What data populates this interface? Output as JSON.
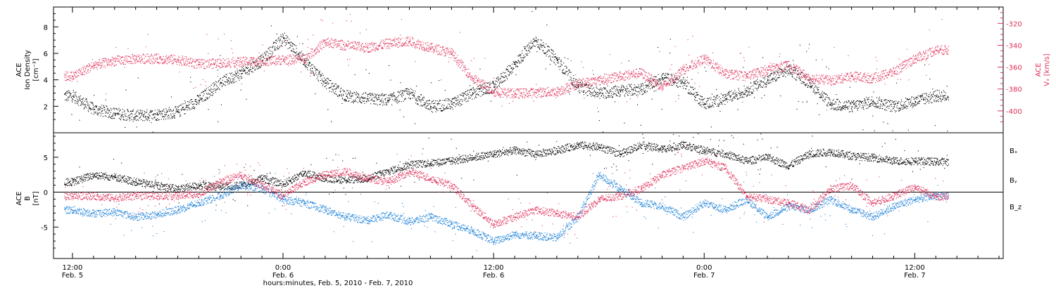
{
  "chart_data": [
    {
      "type": "scatter",
      "panel": "top",
      "title": "",
      "ylabel": [
        "ACE",
        "Ion Density",
        "[cm⁻³]"
      ],
      "y2label": [
        "ACE",
        "Vₓ [km/s]"
      ],
      "ylim": [
        0,
        9.5
      ],
      "y2lim": [
        -420,
        -305
      ],
      "yticks": [
        "2",
        "4",
        "6",
        "8"
      ],
      "y2ticks": [
        "-320",
        "-340",
        "-360",
        "-380",
        "-400"
      ],
      "xlim_hours": [
        -0.9,
        44.2
      ],
      "series": [
        {
          "color": "#000000",
          "axis": "left",
          "x_hours": [
            0,
            1,
            2,
            3,
            4,
            5,
            6,
            7,
            8,
            9,
            10,
            11,
            12,
            13,
            14,
            15,
            16,
            17,
            18,
            19,
            20,
            21,
            22,
            23,
            24,
            25,
            26,
            27,
            28,
            29,
            30,
            31,
            32,
            33,
            34,
            35,
            36,
            37,
            38,
            39,
            40,
            41
          ],
          "values": [
            2.8,
            1.8,
            1.5,
            1.3,
            1.4,
            1.6,
            2.5,
            3.8,
            4.5,
            5.5,
            7.2,
            5.5,
            3.8,
            2.8,
            2.6,
            2.5,
            3.0,
            2.0,
            2.2,
            3.0,
            3.5,
            5.2,
            7.0,
            5.5,
            3.5,
            3.0,
            3.2,
            3.3,
            4.2,
            3.8,
            2.2,
            2.6,
            3.2,
            4.0,
            4.8,
            3.8,
            2.2,
            2.0,
            2.4,
            2.0,
            2.4,
            2.8
          ]
        },
        {
          "color": "#e0305a",
          "axis": "right",
          "x_hours": [
            0,
            1,
            2,
            3,
            4,
            5,
            6,
            7,
            8,
            9,
            10,
            11,
            12,
            13,
            14,
            15,
            16,
            17,
            18,
            19,
            20,
            21,
            22,
            23,
            24,
            25,
            26,
            27,
            28,
            29,
            30,
            31,
            32,
            33,
            34,
            35,
            36,
            37,
            38,
            39,
            40,
            41
          ],
          "values": [
            -368,
            -358,
            -354,
            -352,
            -352,
            -353,
            -357,
            -356,
            -355,
            -354,
            -353,
            -352,
            -337,
            -340,
            -342,
            -338,
            -336,
            -342,
            -347,
            -370,
            -382,
            -384,
            -383,
            -382,
            -375,
            -372,
            -368,
            -365,
            -378,
            -362,
            -352,
            -366,
            -368,
            -362,
            -358,
            -370,
            -372,
            -368,
            -370,
            -364,
            -352,
            -344
          ]
        }
      ]
    },
    {
      "type": "scatter",
      "panel": "bottom",
      "title": "",
      "ylabel": [
        "ACE",
        "B",
        "[nT]"
      ],
      "ylim": [
        -9.5,
        8.5
      ],
      "yticks": [
        "-5",
        "0",
        "5"
      ],
      "xlabel": "hours:minutes, Feb.  5, 2010 - Feb.  7, 2010",
      "xticks": [
        {
          "hours": 0,
          "time": "12:00",
          "date": "Feb. 5"
        },
        {
          "hours": 10,
          "time": "0:00",
          "date": "Feb. 6"
        },
        {
          "hours": 20,
          "time": "12:00",
          "date": "Feb. 6"
        },
        {
          "hours": 30,
          "time": "0:00",
          "date": "Feb. 7"
        },
        {
          "hours": 40,
          "time": "12:00",
          "date": "Feb. 7"
        }
      ],
      "legend": [
        {
          "label": "Bₓ",
          "color": "#000000"
        },
        {
          "label": "Bᵧ",
          "color": "#1a7fd6"
        },
        {
          "label": "B_z",
          "color": "#e0305a"
        }
      ],
      "series": [
        {
          "label": "Bₓ",
          "color": "#000000",
          "x_hours": [
            0,
            1,
            2,
            3,
            4,
            5,
            6,
            7,
            8,
            9,
            10,
            11,
            12,
            13,
            14,
            15,
            16,
            17,
            18,
            19,
            20,
            21,
            22,
            23,
            24,
            25,
            26,
            27,
            28,
            29,
            30,
            31,
            32,
            33,
            34,
            35,
            36,
            37,
            38,
            39,
            40,
            41
          ],
          "values": [
            1.5,
            2.5,
            2.2,
            1.5,
            1.0,
            0.5,
            1.0,
            0.8,
            1.0,
            2.0,
            1.2,
            2.8,
            2.0,
            1.8,
            2.0,
            3.0,
            4.0,
            4.2,
            4.5,
            5.0,
            5.5,
            6.0,
            5.5,
            6.0,
            6.8,
            6.5,
            5.5,
            6.8,
            6.2,
            6.8,
            6.0,
            5.5,
            4.5,
            5.0,
            3.8,
            5.5,
            5.8,
            5.2,
            5.0,
            4.5,
            4.5,
            4.4
          ]
        },
        {
          "label": "Bᵧ",
          "color": "#1a7fd6",
          "x_hours": [
            0,
            1,
            2,
            3,
            4,
            5,
            6,
            7,
            8,
            9,
            10,
            11,
            12,
            13,
            14,
            15,
            16,
            17,
            18,
            19,
            20,
            21,
            22,
            23,
            24,
            25,
            26,
            27,
            28,
            29,
            30,
            31,
            32,
            33,
            34,
            35,
            36,
            37,
            38,
            39,
            40,
            41
          ],
          "values": [
            -2.5,
            -3.0,
            -2.8,
            -3.5,
            -3.2,
            -2.5,
            -1.5,
            -0.5,
            1.0,
            0.5,
            -1.0,
            -1.5,
            -2.5,
            -3.5,
            -4.0,
            -3.2,
            -4.2,
            -3.5,
            -4.5,
            -5.5,
            -7.0,
            -6.0,
            -6.2,
            -6.5,
            -3.5,
            2.5,
            0.5,
            -1.5,
            -2.0,
            -3.5,
            -1.5,
            -2.5,
            -1.0,
            -3.5,
            -2.0,
            -2.5,
            -1.0,
            -2.5,
            -3.5,
            -2.0,
            -1.0,
            -0.5
          ]
        },
        {
          "label": "B_z",
          "color": "#e0305a",
          "x_hours": [
            0,
            1,
            2,
            3,
            4,
            5,
            6,
            7,
            8,
            9,
            10,
            11,
            12,
            13,
            14,
            15,
            16,
            17,
            18,
            19,
            20,
            21,
            22,
            23,
            24,
            25,
            26,
            27,
            28,
            29,
            30,
            31,
            32,
            33,
            34,
            35,
            36,
            37,
            38,
            39,
            40,
            41
          ],
          "values": [
            -0.5,
            -0.5,
            -0.8,
            -0.5,
            -0.5,
            -0.5,
            -0.2,
            1.5,
            2.5,
            1.0,
            -0.5,
            1.5,
            2.5,
            3.0,
            2.0,
            1.5,
            3.0,
            2.0,
            1.0,
            -2.0,
            -4.5,
            -3.5,
            -2.5,
            -3.0,
            -3.5,
            -1.0,
            -0.5,
            0.5,
            2.5,
            3.5,
            4.5,
            3.5,
            -0.5,
            -1.0,
            -1.5,
            -2.5,
            0.5,
            1.0,
            -1.5,
            -0.5,
            0.8,
            -0.6
          ]
        }
      ]
    }
  ]
}
